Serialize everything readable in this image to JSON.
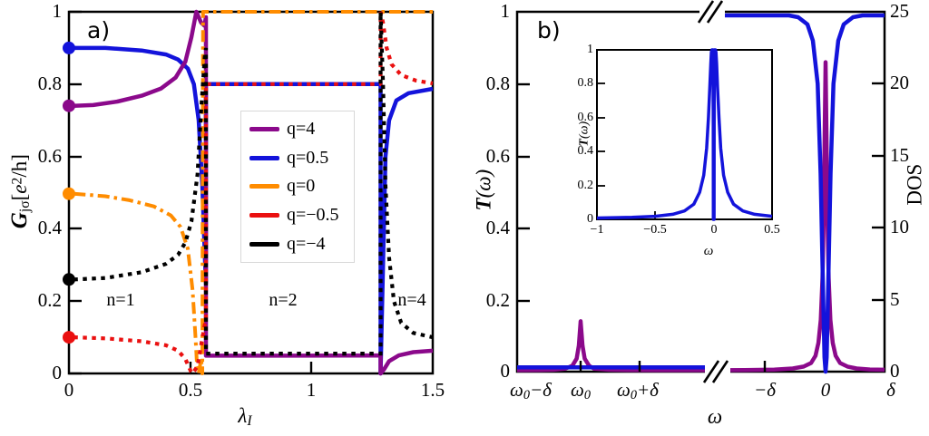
{
  "panel_a": {
    "tag": "a)",
    "ylabel": {
      "g": "G",
      "sub": "jσ",
      "mid": "[",
      "e": "e",
      "exp": "2",
      "end": "/h]"
    },
    "xlabel": {
      "base": "λ",
      "sub": "I"
    }
  },
  "panel_b": {
    "tag": "b)",
    "ylabel": {
      "base": "T",
      "rest": "(ω)"
    },
    "y2label": "DOS",
    "xlabel": "ω",
    "xticks": [
      {
        "pre": "ω",
        "sub": "0",
        "post": "−δ"
      },
      {
        "pre": "ω",
        "sub": "0",
        "post": ""
      },
      {
        "pre": "ω",
        "sub": "0",
        "post": "+δ"
      },
      {
        "pre": "−δ",
        "sub": "",
        "post": ""
      },
      {
        "pre": "0",
        "sub": "",
        "post": ""
      },
      {
        "pre": "δ",
        "sub": "",
        "post": ""
      }
    ],
    "inset": {
      "ylabel": {
        "base": "T",
        "rest": "(ω)"
      },
      "xlabel": "ω"
    }
  },
  "chart_data": [
    {
      "id": "panel_a",
      "type": "line",
      "xlabel": "λ_I",
      "ylabel": "G_jσ [e²/h]",
      "xlim": [
        0,
        1.5
      ],
      "ylim": [
        0,
        1
      ],
      "xticklabels": [
        "0",
        "0.5",
        "1",
        "1.5"
      ],
      "yticklabels": [
        "1",
        "0.8",
        "0.6",
        "0.4",
        "0.2",
        "0"
      ],
      "region_labels": [
        "n=1",
        "n=2",
        "n=4"
      ],
      "phase_transitions": [
        0.565,
        1.285
      ],
      "legend_position": "center",
      "series": [
        {
          "name": "q=0.5",
          "color": "#1313DB",
          "style": "solid",
          "points": [
            [
              0.02,
              0.9
            ],
            [
              0.15,
              0.9
            ],
            [
              0.3,
              0.893
            ],
            [
              0.4,
              0.882
            ],
            [
              0.45,
              0.868
            ],
            [
              0.49,
              0.843
            ],
            [
              0.515,
              0.8
            ],
            [
              0.535,
              0.7
            ],
            [
              0.55,
              0.52
            ],
            [
              0.56,
              0.33
            ],
            [
              0.565,
              0.25
            ],
            [
              0.565,
              0.8
            ],
            [
              1.285,
              0.8
            ],
            [
              1.285,
              0.0
            ],
            [
              1.295,
              0.3
            ],
            [
              1.305,
              0.6
            ],
            [
              1.32,
              0.7
            ],
            [
              1.35,
              0.755
            ],
            [
              1.4,
              0.775
            ],
            [
              1.5,
              0.787
            ]
          ]
        },
        {
          "name": "q=4",
          "color": "#8B098B",
          "style": "solid",
          "points": [
            [
              0.02,
              0.74
            ],
            [
              0.1,
              0.742
            ],
            [
              0.2,
              0.752
            ],
            [
              0.3,
              0.768
            ],
            [
              0.38,
              0.788
            ],
            [
              0.44,
              0.818
            ],
            [
              0.48,
              0.862
            ],
            [
              0.505,
              0.93
            ],
            [
              0.525,
              1.0
            ],
            [
              0.545,
              0.97
            ],
            [
              0.558,
              0.962
            ],
            [
              0.565,
              0.985
            ],
            [
              0.565,
              0.049
            ],
            [
              0.9,
              0.049
            ],
            [
              1.285,
              0.05
            ],
            [
              1.285,
              0.0
            ],
            [
              1.3,
              0.012
            ],
            [
              1.32,
              0.034
            ],
            [
              1.36,
              0.05
            ],
            [
              1.42,
              0.059
            ],
            [
              1.5,
              0.063
            ]
          ]
        },
        {
          "name": "q=0",
          "color": "#FF8C00",
          "style": "dashdot",
          "points": [
            [
              0.02,
              0.497
            ],
            [
              0.15,
              0.49
            ],
            [
              0.25,
              0.479
            ],
            [
              0.35,
              0.462
            ],
            [
              0.42,
              0.437
            ],
            [
              0.46,
              0.405
            ],
            [
              0.49,
              0.345
            ],
            [
              0.51,
              0.23
            ],
            [
              0.522,
              0.1
            ],
            [
              0.528,
              0.02
            ],
            [
              0.535,
              0.0
            ],
            [
              0.545,
              0.04
            ],
            [
              0.55,
              0.0
            ],
            [
              0.553,
              1.0
            ],
            [
              1.5,
              1.0
            ]
          ]
        },
        {
          "name": "q=−0.5",
          "color": "#EA1010",
          "style": "dotted",
          "points": [
            [
              0.02,
              0.1
            ],
            [
              0.15,
              0.097
            ],
            [
              0.3,
              0.089
            ],
            [
              0.4,
              0.078
            ],
            [
              0.45,
              0.063
            ],
            [
              0.48,
              0.04
            ],
            [
              0.503,
              0.005
            ],
            [
              0.51,
              0.0
            ],
            [
              0.53,
              0.02
            ],
            [
              0.548,
              0.09
            ],
            [
              0.56,
              0.135
            ],
            [
              0.565,
              0.14
            ],
            [
              0.565,
              0.8
            ],
            [
              1.285,
              0.8
            ],
            [
              1.285,
              1.0
            ],
            [
              1.295,
              0.97
            ],
            [
              1.31,
              0.9
            ],
            [
              1.33,
              0.855
            ],
            [
              1.37,
              0.825
            ],
            [
              1.43,
              0.81
            ],
            [
              1.5,
              0.802
            ]
          ]
        },
        {
          "name": "q=−4",
          "color": "#000000",
          "style": "dotted",
          "points": [
            [
              0.02,
              0.26
            ],
            [
              0.15,
              0.264
            ],
            [
              0.3,
              0.28
            ],
            [
              0.4,
              0.303
            ],
            [
              0.45,
              0.328
            ],
            [
              0.48,
              0.362
            ],
            [
              0.505,
              0.42
            ],
            [
              0.53,
              0.55
            ],
            [
              0.548,
              0.76
            ],
            [
              0.56,
              0.875
            ],
            [
              0.565,
              0.9
            ],
            [
              0.565,
              0.055
            ],
            [
              1.285,
              0.055
            ],
            [
              1.285,
              1.0
            ],
            [
              1.295,
              0.8
            ],
            [
              1.305,
              0.52
            ],
            [
              1.32,
              0.32
            ],
            [
              1.34,
              0.2
            ],
            [
              1.37,
              0.14
            ],
            [
              1.42,
              0.112
            ],
            [
              1.5,
              0.1
            ]
          ]
        }
      ],
      "markers": [
        {
          "x": 0,
          "y": 0.9,
          "color": "#1313DB"
        },
        {
          "x": 0,
          "y": 0.74,
          "color": "#8B098B"
        },
        {
          "x": 0,
          "y": 0.497,
          "color": "#FF8C00"
        },
        {
          "x": 0,
          "y": 0.26,
          "color": "#000000"
        },
        {
          "x": 0,
          "y": 0.1,
          "color": "#EA1010"
        }
      ]
    },
    {
      "id": "panel_b",
      "type": "line",
      "xlabel": "ω",
      "ylabel": "T(ω)",
      "y2label": "DOS",
      "ylim": [
        0,
        1
      ],
      "y2lim": [
        0,
        25
      ],
      "x_axis": "broken",
      "xticklabels": [
        "ω0−δ",
        "ω0",
        "ω0+δ",
        "−δ",
        "0",
        "δ"
      ],
      "yticklabels": [
        "1",
        "0.8",
        "0.6",
        "0.4",
        "0.2",
        "0"
      ],
      "y2ticklabels": [
        "25",
        "20",
        "15",
        "10",
        "5",
        "0"
      ],
      "series": [
        {
          "name": "DOS",
          "axis": "y2",
          "color": "#8B098B",
          "style": "solid",
          "points": [
            [
              0,
              0.1
            ],
            [
              0.06,
              0.11
            ],
            [
              0.1,
              0.13
            ],
            [
              0.13,
              0.2
            ],
            [
              0.15,
              0.4
            ],
            [
              0.162,
              0.9
            ],
            [
              0.168,
              1.8
            ],
            [
              0.1728,
              3.5
            ],
            [
              0.178,
              1.8
            ],
            [
              0.184,
              0.9
            ],
            [
              0.196,
              0.4
            ],
            [
              0.21,
              0.2
            ],
            [
              0.25,
              0.13
            ],
            [
              0.3,
              0.11
            ],
            [
              0.4,
              0.1
            ],
            [
              0.543,
              0.1
            ],
            null,
            [
              0.553,
              0.1
            ],
            [
              0.62,
              0.11
            ],
            [
              0.7,
              0.14
            ],
            [
              0.75,
              0.22
            ],
            [
              0.78,
              0.35
            ],
            [
              0.8,
              0.6
            ],
            [
              0.812,
              1.1
            ],
            [
              0.82,
              2.0
            ],
            [
              0.8265,
              3.6
            ],
            [
              0.831,
              6.5
            ],
            [
              0.8345,
              11.0
            ],
            [
              0.837,
              16.5
            ],
            [
              0.8395,
              21.5
            ],
            [
              0.842,
              16.5
            ],
            [
              0.8445,
              11.0
            ],
            [
              0.848,
              6.5
            ],
            [
              0.8525,
              3.6
            ],
            [
              0.859,
              2.0
            ],
            [
              0.867,
              1.1
            ],
            [
              0.879,
              0.6
            ],
            [
              0.899,
              0.35
            ],
            [
              0.924,
              0.22
            ],
            [
              0.96,
              0.15
            ],
            [
              1.0,
              0.13
            ]
          ]
        },
        {
          "name": "T",
          "axis": "y1",
          "color": "#1313DB",
          "style": "solid",
          "points": [
            [
              0,
              0.012
            ],
            [
              0.3,
              0.012
            ],
            [
              0.543,
              0.012
            ],
            null,
            [
              0.553,
              0.99
            ],
            [
              0.74,
              0.99
            ],
            [
              0.765,
              0.985
            ],
            [
              0.79,
              0.965
            ],
            [
              0.805,
              0.92
            ],
            [
              0.818,
              0.8
            ],
            [
              0.826,
              0.55
            ],
            [
              0.832,
              0.25
            ],
            [
              0.8365,
              0.04
            ],
            [
              0.8395,
              0.0
            ],
            [
              0.8425,
              0.04
            ],
            [
              0.847,
              0.25
            ],
            [
              0.853,
              0.55
            ],
            [
              0.861,
              0.8
            ],
            [
              0.874,
              0.92
            ],
            [
              0.889,
              0.965
            ],
            [
              0.914,
              0.985
            ],
            [
              0.94,
              0.99
            ],
            [
              1.0,
              0.99
            ]
          ]
        }
      ]
    },
    {
      "id": "inset",
      "type": "line",
      "xlabel": "ω",
      "ylabel": "T(ω)",
      "xlim": [
        -1,
        0.5
      ],
      "ylim": [
        0,
        1
      ],
      "xticklabels": [
        "−1",
        "−0.5",
        "0",
        "0.5"
      ],
      "yticklabels": [
        "1",
        "0.8",
        "0.6",
        "0.4",
        "0.2",
        "0"
      ],
      "series": [
        {
          "name": "T",
          "color": "#1313DB",
          "style": "solid",
          "points": [
            [
              -1,
              0.008
            ],
            [
              -0.7,
              0.012
            ],
            [
              -0.5,
              0.018
            ],
            [
              -0.35,
              0.03
            ],
            [
              -0.25,
              0.05
            ],
            [
              -0.17,
              0.09
            ],
            [
              -0.12,
              0.16
            ],
            [
              -0.085,
              0.26
            ],
            [
              -0.06,
              0.42
            ],
            [
              -0.045,
              0.6
            ],
            [
              -0.033,
              0.78
            ],
            [
              -0.025,
              0.92
            ],
            [
              -0.02,
              0.985
            ],
            [
              -0.015,
              1.0
            ],
            [
              -0.006,
              1.0
            ],
            [
              -0.004,
              0.55
            ],
            [
              -0.003,
              0.0
            ],
            [
              0.003,
              0.0
            ],
            [
              0.004,
              0.55
            ],
            [
              0.006,
              1.0
            ],
            [
              0.015,
              1.0
            ],
            [
              0.02,
              0.985
            ],
            [
              0.025,
              0.92
            ],
            [
              0.033,
              0.78
            ],
            [
              0.045,
              0.6
            ],
            [
              0.06,
              0.42
            ],
            [
              0.085,
              0.26
            ],
            [
              0.12,
              0.16
            ],
            [
              0.17,
              0.09
            ],
            [
              0.25,
              0.05
            ],
            [
              0.35,
              0.03
            ],
            [
              0.5,
              0.018
            ]
          ]
        }
      ]
    }
  ]
}
